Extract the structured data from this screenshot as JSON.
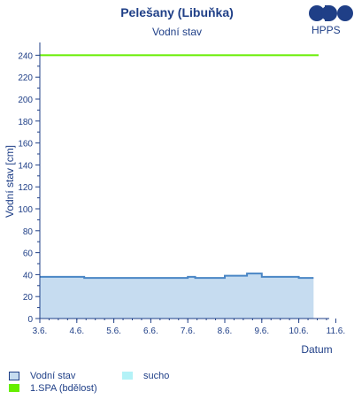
{
  "header": {
    "title": "Pelešany (Libuňka)",
    "subtitle": "Vodní stav",
    "logo_text": "HPPS"
  },
  "chart_data": {
    "type": "area",
    "title": "Pelešany (Libuňka)",
    "subtitle": "Vodní stav",
    "xlabel": "Datum",
    "ylabel": "Vodní stav [cm]",
    "ylim": [
      0,
      250
    ],
    "yticks": [
      0,
      20,
      40,
      60,
      80,
      100,
      120,
      140,
      160,
      180,
      200,
      220,
      240
    ],
    "xticks": [
      "3.6.",
      "4.6.",
      "5.6.",
      "6.6.",
      "7.6.",
      "8.6.",
      "9.6.",
      "10.6.",
      "11.6."
    ],
    "x_domain": [
      "3.6.",
      "11.6."
    ],
    "grid": false,
    "series": [
      {
        "name": "Vodní stav",
        "color": "#4a86c5",
        "fill": "#c6dcf0",
        "x": [
          "3.6.",
          "3.7.",
          "4.6.",
          "4.8.",
          "5.6.",
          "6.6.",
          "7.6.",
          "7.8.",
          "8.6.",
          "9.2.",
          "9.6.",
          "10.6.",
          "11.0."
        ],
        "values": [
          38,
          38,
          38,
          37,
          37,
          37,
          38,
          37,
          39,
          41,
          38,
          37,
          37
        ]
      },
      {
        "name": "1.SPA (bdělost)",
        "color": "#66ee00",
        "values": [
          240,
          240
        ]
      }
    ],
    "legend": [
      {
        "label": "Vodní stav",
        "color": "#c6dcf0",
        "border": "#1f3f87"
      },
      {
        "label": "sucho",
        "color": "#b3f2f7",
        "border": ""
      },
      {
        "label": "1.SPA (bdělost)",
        "color": "#66ee00",
        "border": ""
      }
    ],
    "legend_position": "bottom"
  }
}
